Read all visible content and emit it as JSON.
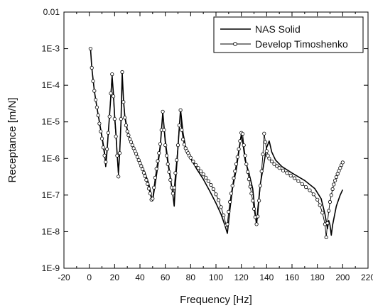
{
  "chart_data": {
    "type": "line",
    "title": "",
    "xlabel": "Frequency [Hz]",
    "ylabel": "Receptance [m/N]",
    "xlim": [
      -20,
      220
    ],
    "ylim": [
      1e-09,
      0.01
    ],
    "yscale": "log",
    "grid": false,
    "legend_position": "top-right",
    "x_ticks": [
      -20,
      0,
      20,
      40,
      60,
      80,
      100,
      120,
      140,
      160,
      180,
      200,
      220
    ],
    "x_tick_labels": [
      "-20",
      "0",
      "20",
      "40",
      "60",
      "80",
      "100",
      "120",
      "140",
      "160",
      "180",
      "200",
      "220"
    ],
    "y_ticks": [
      1e-09,
      1e-08,
      1e-07,
      1e-06,
      1e-05,
      0.0001,
      0.001,
      0.01
    ],
    "y_tick_labels": [
      "1E-9",
      "1E-8",
      "1E-7",
      "1E-6",
      "1E-5",
      "1E-4",
      "1E-3",
      "0.01"
    ],
    "series": [
      {
        "name": "NAS Solid",
        "style": "solid-line",
        "color": "#000000",
        "points": [
          [
            1,
            0.001
          ],
          [
            2,
            0.0003
          ],
          [
            4,
            7e-05
          ],
          [
            6,
            2.5e-05
          ],
          [
            8,
            1e-05
          ],
          [
            10,
            4e-06
          ],
          [
            12,
            1.5e-06
          ],
          [
            13,
            6e-07
          ],
          [
            14,
            1.5e-06
          ],
          [
            15,
            5e-06
          ],
          [
            16,
            1.5e-05
          ],
          [
            17,
            5e-05
          ],
          [
            18,
            0.00018
          ],
          [
            19,
            6e-05
          ],
          [
            20,
            1.5e-05
          ],
          [
            21,
            5e-06
          ],
          [
            22,
            1.3e-06
          ],
          [
            23,
            4e-07
          ],
          [
            24,
            1.5e-06
          ],
          [
            25,
            1e-05
          ],
          [
            26,
            0.00022
          ],
          [
            27,
            4e-05
          ],
          [
            28,
            1.5e-05
          ],
          [
            30,
            6e-06
          ],
          [
            32,
            3.5e-06
          ],
          [
            35,
            2e-06
          ],
          [
            38,
            1.2e-06
          ],
          [
            41,
            7e-07
          ],
          [
            44,
            4e-07
          ],
          [
            47,
            2e-07
          ],
          [
            49,
            9e-08
          ],
          [
            50,
            7e-08
          ],
          [
            52,
            2e-07
          ],
          [
            54,
            6e-07
          ],
          [
            56,
            2e-06
          ],
          [
            58,
            1.8e-05
          ],
          [
            60,
            3e-06
          ],
          [
            62,
            9e-07
          ],
          [
            64,
            3e-07
          ],
          [
            66,
            1e-07
          ],
          [
            67,
            5e-08
          ],
          [
            68,
            2e-07
          ],
          [
            70,
            2e-06
          ],
          [
            72,
            2.2e-05
          ],
          [
            74,
            5e-06
          ],
          [
            76,
            2e-06
          ],
          [
            80,
            1e-06
          ],
          [
            85,
            5e-07
          ],
          [
            90,
            2.7e-07
          ],
          [
            95,
            1.3e-07
          ],
          [
            100,
            6e-08
          ],
          [
            104,
            3e-08
          ],
          [
            107,
            1.5e-08
          ],
          [
            109,
            9e-09
          ],
          [
            111,
            4e-08
          ],
          [
            113,
            1.5e-07
          ],
          [
            116,
            5e-07
          ],
          [
            118,
            1.5e-06
          ],
          [
            120,
            4.5e-06
          ],
          [
            121,
            3e-06
          ],
          [
            123,
            9e-07
          ],
          [
            126,
            4e-07
          ],
          [
            129,
            1.5e-07
          ],
          [
            131,
            3e-08
          ],
          [
            132,
            1.5e-08
          ],
          [
            133,
            4e-08
          ],
          [
            135,
            2e-07
          ],
          [
            138,
            8e-07
          ],
          [
            140,
            2e-06
          ],
          [
            142,
            3e-06
          ],
          [
            144,
            1.5e-06
          ],
          [
            147,
            9e-07
          ],
          [
            152,
            6e-07
          ],
          [
            160,
            4e-07
          ],
          [
            170,
            2.5e-07
          ],
          [
            178,
            1.5e-07
          ],
          [
            183,
            8e-08
          ],
          [
            186,
            3e-08
          ],
          [
            188,
            1.2e-08
          ],
          [
            189,
            2e-08
          ],
          [
            190,
            1.5e-08
          ],
          [
            191,
            8e-09
          ],
          [
            192,
            1.5e-08
          ],
          [
            195,
            5e-08
          ],
          [
            198,
            1e-07
          ],
          [
            200,
            1.4e-07
          ]
        ]
      },
      {
        "name": "Develop Timoshenko",
        "style": "line-with-circles",
        "color": "#000000",
        "points": [
          [
            1,
            0.001
          ],
          [
            2,
            0.0003
          ],
          [
            3,
            0.00013
          ],
          [
            4,
            7e-05
          ],
          [
            5,
            4e-05
          ],
          [
            6,
            2.5e-05
          ],
          [
            7,
            1.5e-05
          ],
          [
            8,
            9e-06
          ],
          [
            9,
            5.5e-06
          ],
          [
            10,
            3.5e-06
          ],
          [
            11,
            2e-06
          ],
          [
            12,
            1.2e-06
          ],
          [
            13,
            8e-07
          ],
          [
            14,
            1.8e-06
          ],
          [
            15,
            5e-06
          ],
          [
            16,
            1.4e-05
          ],
          [
            17,
            6e-05
          ],
          [
            18,
            0.0002
          ],
          [
            19,
            5e-05
          ],
          [
            20,
            1.2e-05
          ],
          [
            21,
            4e-06
          ],
          [
            22,
            1.2e-06
          ],
          [
            23,
            3.2e-07
          ],
          [
            24,
            1.4e-06
          ],
          [
            25,
            1.2e-05
          ],
          [
            26,
            0.00023
          ],
          [
            27,
            3.5e-05
          ],
          [
            28,
            1.3e-05
          ],
          [
            29,
            8e-06
          ],
          [
            30,
            5.5e-06
          ],
          [
            31,
            4.3e-06
          ],
          [
            32,
            3.4e-06
          ],
          [
            33,
            2.8e-06
          ],
          [
            34,
            2.3e-06
          ],
          [
            35,
            1.9e-06
          ],
          [
            36,
            1.6e-06
          ],
          [
            37,
            1.35e-06
          ],
          [
            38,
            1.1e-06
          ],
          [
            39,
            9e-07
          ],
          [
            40,
            7.5e-07
          ],
          [
            41,
            6.2e-07
          ],
          [
            42,
            5.1e-07
          ],
          [
            43,
            4.1e-07
          ],
          [
            44,
            3.3e-07
          ],
          [
            45,
            2.6e-07
          ],
          [
            46,
            2e-07
          ],
          [
            47,
            1.5e-07
          ],
          [
            48,
            1.1e-07
          ],
          [
            49,
            7.5e-08
          ],
          [
            50,
            8e-08
          ],
          [
            51,
            1.6e-07
          ],
          [
            52,
            3e-07
          ],
          [
            53,
            5.2e-07
          ],
          [
            54,
            8.5e-07
          ],
          [
            55,
            1.4e-06
          ],
          [
            56,
            2.5e-06
          ],
          [
            57,
            6e-06
          ],
          [
            58,
            1.9e-05
          ],
          [
            59,
            6e-06
          ],
          [
            60,
            2.3e-06
          ],
          [
            61,
            1.2e-06
          ],
          [
            62,
            7e-07
          ],
          [
            63,
            4.3e-07
          ],
          [
            64,
            2.6e-07
          ],
          [
            65,
            1.6e-07
          ],
          [
            66,
            1.1e-07
          ],
          [
            67,
            1.6e-07
          ],
          [
            68,
            4e-07
          ],
          [
            69,
            9e-07
          ],
          [
            70,
            2.3e-06
          ],
          [
            71,
            8e-06
          ],
          [
            72,
            2.1e-05
          ],
          [
            73,
            6e-06
          ],
          [
            74,
            3.3e-06
          ],
          [
            75,
            2.4e-06
          ],
          [
            76,
            1.9e-06
          ],
          [
            77,
            1.6e-06
          ],
          [
            78,
            1.4e-06
          ],
          [
            79,
            1.2e-06
          ],
          [
            80,
            1.05e-06
          ],
          [
            82,
            8.3e-07
          ],
          [
            84,
            6.7e-07
          ],
          [
            86,
            5.5e-07
          ],
          [
            88,
            4.5e-07
          ],
          [
            90,
            3.7e-07
          ],
          [
            92,
            3e-07
          ],
          [
            94,
            2.4e-07
          ],
          [
            96,
            1.9e-07
          ],
          [
            98,
            1.45e-07
          ],
          [
            100,
            1.05e-07
          ],
          [
            102,
            7.3e-08
          ],
          [
            104,
            4.7e-08
          ],
          [
            106,
            2.8e-08
          ],
          [
            108,
            1.5e-08
          ],
          [
            109,
            1.6e-08
          ],
          [
            110,
            3.5e-08
          ],
          [
            111,
            6.5e-08
          ],
          [
            112,
            1.1e-07
          ],
          [
            113,
            1.8e-07
          ],
          [
            114,
            2.9e-07
          ],
          [
            115,
            4.5e-07
          ],
          [
            116,
            7e-07
          ],
          [
            117,
            1.1e-06
          ],
          [
            118,
            1.8e-06
          ],
          [
            119,
            3e-06
          ],
          [
            120,
            5e-06
          ],
          [
            121,
            4.7e-06
          ],
          [
            122,
            2.3e-06
          ],
          [
            123,
            1.2e-06
          ],
          [
            124,
            7e-07
          ],
          [
            125,
            4.3e-07
          ],
          [
            126,
            2.7e-07
          ],
          [
            127,
            1.7e-07
          ],
          [
            128,
            1.1e-07
          ],
          [
            129,
            7e-08
          ],
          [
            130,
            4.2e-08
          ],
          [
            131,
            2.5e-08
          ],
          [
            132,
            1.6e-08
          ],
          [
            133,
            2.6e-08
          ],
          [
            134,
            7e-08
          ],
          [
            135,
            1.8e-07
          ],
          [
            136,
            4.5e-07
          ],
          [
            137,
            1.3e-06
          ],
          [
            138,
            4.8e-06
          ],
          [
            139,
            2.8e-06
          ],
          [
            140,
            1.6e-06
          ],
          [
            141,
            1.2e-06
          ],
          [
            142,
            1e-06
          ],
          [
            144,
            8.3e-07
          ],
          [
            146,
            7e-07
          ],
          [
            148,
            6.2e-07
          ],
          [
            150,
            5.5e-07
          ],
          [
            153,
            4.7e-07
          ],
          [
            156,
            4e-07
          ],
          [
            159,
            3.4e-07
          ],
          [
            162,
            2.9e-07
          ],
          [
            165,
            2.4e-07
          ],
          [
            168,
            2e-07
          ],
          [
            171,
            1.65e-07
          ],
          [
            174,
            1.35e-07
          ],
          [
            177,
            1.05e-07
          ],
          [
            180,
            7.5e-08
          ],
          [
            182,
            5.3e-08
          ],
          [
            184,
            3.3e-08
          ],
          [
            186,
            1.6e-08
          ],
          [
            187,
            7e-09
          ],
          [
            188,
            1.7e-08
          ],
          [
            189,
            3.7e-08
          ],
          [
            190,
            6.5e-08
          ],
          [
            191,
            1e-07
          ],
          [
            192,
            1.45e-07
          ],
          [
            193,
            1.95e-07
          ],
          [
            194,
            2.5e-07
          ],
          [
            195,
            3.1e-07
          ],
          [
            196,
            3.8e-07
          ],
          [
            197,
            4.6e-07
          ],
          [
            198,
            5.5e-07
          ],
          [
            199,
            6.6e-07
          ],
          [
            200,
            7.8e-07
          ]
        ]
      }
    ]
  }
}
